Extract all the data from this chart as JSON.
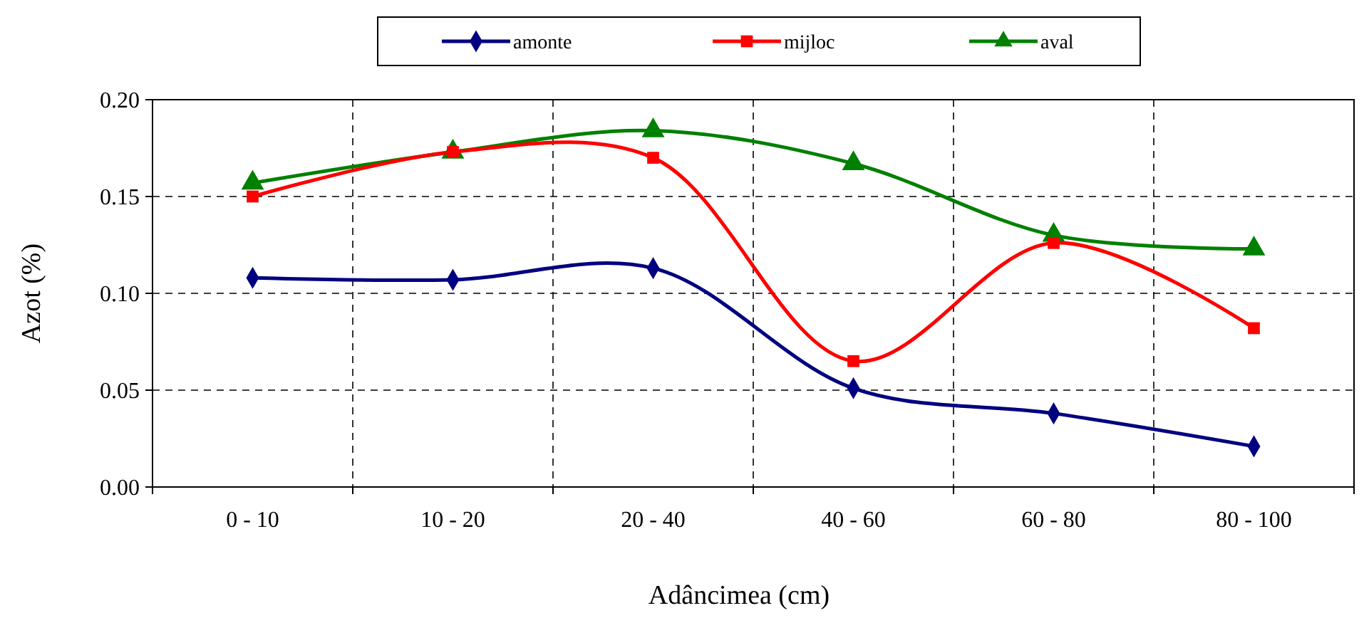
{
  "chart_data": {
    "type": "line",
    "xlabel": "Adâncimea (cm)",
    "ylabel": "Azot (%)",
    "categories": [
      "0 - 10",
      "10 - 20",
      "20 - 40",
      "40 - 60",
      "60 - 80",
      "80 - 100"
    ],
    "series": [
      {
        "name": "amonte",
        "color": "#000080",
        "marker": "diamond",
        "values": [
          0.108,
          0.107,
          0.113,
          0.051,
          0.038,
          0.021
        ]
      },
      {
        "name": "mijloc",
        "color": "#ff0000",
        "marker": "square",
        "values": [
          0.15,
          0.173,
          0.17,
          0.065,
          0.126,
          0.082
        ]
      },
      {
        "name": "aval",
        "color": "#008000",
        "marker": "triangle",
        "values": [
          0.157,
          0.173,
          0.184,
          0.167,
          0.13,
          0.123
        ]
      }
    ],
    "ylim": [
      0,
      0.2
    ],
    "yticks": [
      {
        "value": 0,
        "label": "0.00"
      },
      {
        "value": 0.05,
        "label": "0.05"
      },
      {
        "value": 0.1,
        "label": "0.10"
      },
      {
        "value": 0.15,
        "label": "0.15"
      },
      {
        "value": 0.2,
        "label": "0.20"
      }
    ],
    "grid": true,
    "legend": "top",
    "line_style": "solid"
  }
}
